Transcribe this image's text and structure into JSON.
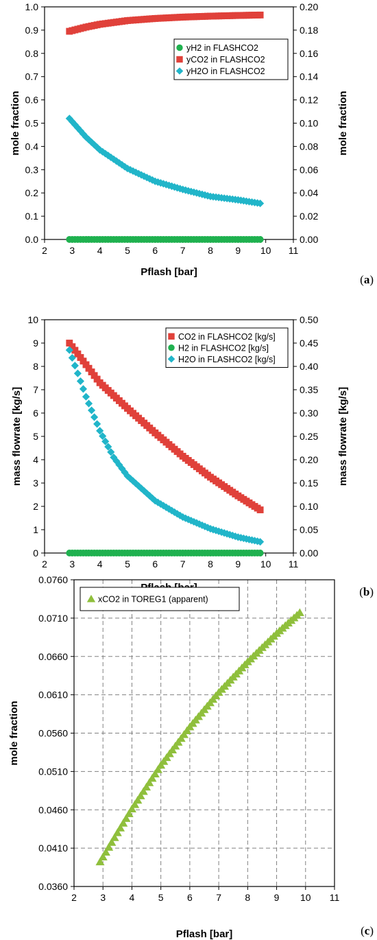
{
  "panels": [
    {
      "label": "(a)",
      "label_open": "(",
      "label_letter": "a",
      "label_close": ")"
    },
    {
      "label": "(b)",
      "label_open": "(",
      "label_letter": "b",
      "label_close": ")"
    },
    {
      "label": "(c)",
      "label_open": "(",
      "label_letter": "c",
      "label_close": ")"
    }
  ],
  "colors": {
    "red": "#e0413a",
    "green": "#1fb14f",
    "cyan": "#21b5c9",
    "lime": "#8fbf3c",
    "grid": "#808080"
  },
  "chart_data": [
    {
      "type": "scatter",
      "panel": "a",
      "xlabel": "Pflash [bar]",
      "ylabel": "mole fraction",
      "ylabel_right": "mole fraction",
      "xlim": [
        2,
        11
      ],
      "ylim": [
        0,
        1
      ],
      "ylim_right": [
        0,
        0.2
      ],
      "x_ticks": [
        "2",
        "3",
        "4",
        "5",
        "6",
        "7",
        "8",
        "9",
        "10",
        "11"
      ],
      "y_ticks": [
        "0.0",
        "0.1",
        "0.2",
        "0.3",
        "0.4",
        "0.5",
        "0.6",
        "0.7",
        "0.8",
        "0.9",
        "1.0"
      ],
      "y_ticks_right": [
        "0.00",
        "0.02",
        "0.04",
        "0.06",
        "0.08",
        "0.10",
        "0.12",
        "0.14",
        "0.16",
        "0.18",
        "0.20"
      ],
      "grid": false,
      "legend_position": "top-right",
      "series": [
        {
          "name": "yH2 in FLASHCO2",
          "marker": "circle",
          "color": "#1fb14f",
          "axis": "left",
          "x_range": [
            2.9,
            9.8
          ],
          "points": 70,
          "x": [
            2.9,
            4,
            5,
            6,
            7,
            8,
            9,
            9.8
          ],
          "y": [
            0.0,
            0.0,
            0.0,
            0.0,
            0.0,
            0.0,
            0.0,
            0.0
          ]
        },
        {
          "name": "yCO2 in FLASHCO2",
          "marker": "square",
          "color": "#e0413a",
          "axis": "left",
          "x_range": [
            2.9,
            9.8
          ],
          "points": 70,
          "x": [
            2.9,
            3.5,
            4,
            5,
            6,
            7,
            8,
            9,
            9.8
          ],
          "y": [
            0.895,
            0.913,
            0.925,
            0.941,
            0.95,
            0.956,
            0.96,
            0.963,
            0.965
          ]
        },
        {
          "name": "yH2O in FLASHCO2",
          "marker": "diamond",
          "color": "#21b5c9",
          "axis": "right",
          "x_range": [
            2.9,
            9.8
          ],
          "points": 70,
          "x": [
            2.9,
            3.5,
            4,
            5,
            6,
            7,
            8,
            9,
            9.8
          ],
          "y": [
            0.104,
            0.088,
            0.077,
            0.061,
            0.05,
            0.043,
            0.037,
            0.034,
            0.031
          ]
        }
      ]
    },
    {
      "type": "scatter",
      "panel": "b",
      "xlabel": "Pflash [bar]",
      "ylabel": "mass flowrate [kg/s]",
      "ylabel_right": "mass flowrate [kg/s]",
      "xlim": [
        2,
        11
      ],
      "ylim": [
        0,
        10
      ],
      "ylim_right": [
        0,
        0.5
      ],
      "x_ticks": [
        "2",
        "3",
        "4",
        "5",
        "6",
        "7",
        "8",
        "9",
        "10",
        "11"
      ],
      "y_ticks": [
        "0",
        "1",
        "2",
        "3",
        "4",
        "5",
        "6",
        "7",
        "8",
        "9",
        "10"
      ],
      "y_ticks_right": [
        "0.00",
        "0.05",
        "0.10",
        "0.15",
        "0.20",
        "0.25",
        "0.30",
        "0.35",
        "0.40",
        "0.45",
        "0.50"
      ],
      "grid": false,
      "legend_position": "top-right",
      "series": [
        {
          "name": "CO2 in FLASHCO2 [kg/s]",
          "marker": "square",
          "color": "#e0413a",
          "axis": "left",
          "x_range": [
            2.9,
            9.8
          ],
          "points": 70,
          "x": [
            2.9,
            4,
            5,
            6,
            7,
            8,
            9,
            9.8
          ],
          "y": [
            9.0,
            7.3,
            6.2,
            5.15,
            4.15,
            3.25,
            2.45,
            1.85
          ]
        },
        {
          "name": "H2 in FLASHCO2 [kg/s]",
          "marker": "circle",
          "color": "#1fb14f",
          "axis": "left",
          "x_range": [
            2.9,
            9.8
          ],
          "points": 70,
          "x": [
            2.9,
            4,
            5,
            6,
            7,
            8,
            9,
            9.8
          ],
          "y": [
            0.0,
            0.0,
            0.0,
            0.0,
            0.0,
            0.0,
            0.0,
            0.0
          ]
        },
        {
          "name": "H2O in FLASHCO2 [kg/s]",
          "marker": "diamond",
          "color": "#21b5c9",
          "axis": "right",
          "x_range": [
            2.9,
            9.8
          ],
          "points": 70,
          "x": [
            2.9,
            3.2,
            3.5,
            4,
            4.5,
            5,
            6,
            7,
            8,
            9,
            9.8
          ],
          "y": [
            0.435,
            0.385,
            0.335,
            0.262,
            0.205,
            0.165,
            0.112,
            0.077,
            0.052,
            0.034,
            0.024
          ]
        }
      ]
    },
    {
      "type": "scatter",
      "panel": "c",
      "xlabel": "Pflash [bar]",
      "ylabel": "mole fraction",
      "xlim": [
        2,
        11
      ],
      "ylim": [
        0.036,
        0.076
      ],
      "x_ticks": [
        "2",
        "3",
        "4",
        "5",
        "6",
        "7",
        "8",
        "9",
        "10",
        "11"
      ],
      "y_ticks": [
        "0.0360",
        "0.0410",
        "0.0460",
        "0.0510",
        "0.0560",
        "0.0610",
        "0.0660",
        "0.0710",
        "0.0760"
      ],
      "grid": true,
      "legend_position": "top-left",
      "series": [
        {
          "name": "xCO2 in TOREG1 (apparent)",
          "marker": "triangle",
          "color": "#8fbf3c",
          "axis": "left",
          "x_range": [
            2.9,
            9.8
          ],
          "points": 70,
          "x": [
            2.9,
            3.5,
            4,
            5,
            6,
            7,
            8,
            9,
            9.8
          ],
          "y": [
            0.0392,
            0.043,
            0.0461,
            0.0518,
            0.0568,
            0.0613,
            0.0653,
            0.069,
            0.0717
          ]
        }
      ]
    }
  ]
}
